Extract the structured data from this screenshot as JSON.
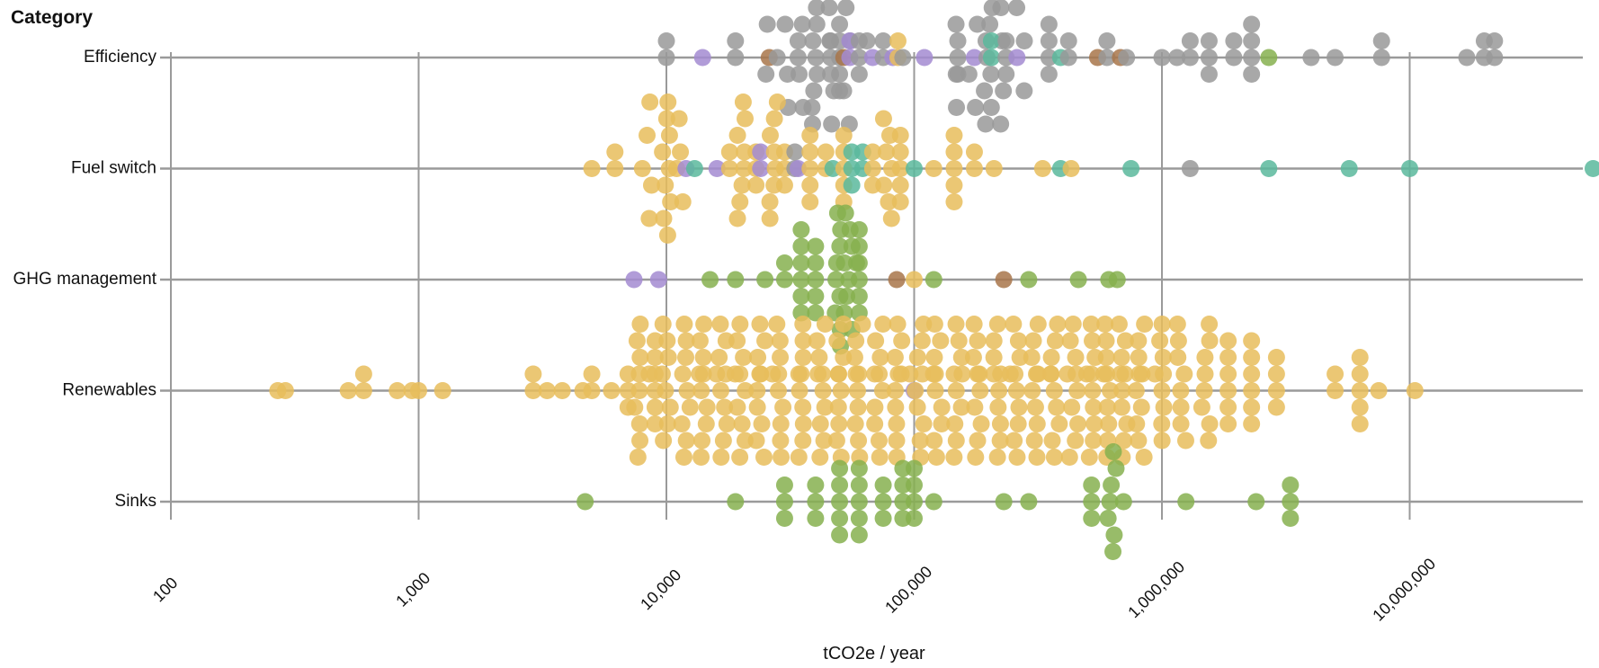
{
  "chart_data": {
    "type": "scatter",
    "title": "",
    "y_axis_title": "Category",
    "xlabel": "tCO2e / year",
    "x_scale": "log",
    "xlim": [
      100,
      60000000
    ],
    "x_ticks": [
      {
        "value": 100,
        "label": "100"
      },
      {
        "value": 1000,
        "label": "1,000"
      },
      {
        "value": 10000,
        "label": "10,000"
      },
      {
        "value": 100000,
        "label": "100,000"
      },
      {
        "value": 1000000,
        "label": "1,000,000"
      },
      {
        "value": 10000000,
        "label": "10,000,000"
      }
    ],
    "grid": true,
    "legend": "none",
    "categories": [
      "Efficiency",
      "Fuel switch",
      "GHG management",
      "Renewables",
      "Sinks"
    ],
    "colors": {
      "gray": "#999999",
      "yellow": "#e8bd5c",
      "green": "#86b04f",
      "purple": "#a38bd1",
      "teal": "#5bb89c",
      "brown": "#a8754a"
    },
    "series": [
      {
        "category": "Efficiency",
        "clusters": [
          {
            "x": 10000,
            "n": 2,
            "color": "gray"
          },
          {
            "x": 14000,
            "n": 1,
            "color": "purple"
          },
          {
            "x": 19000,
            "n": 2,
            "color": "gray"
          },
          {
            "x": 26000,
            "n": 1,
            "color": "brown"
          },
          {
            "x": 28000,
            "n": 1,
            "color": "gray"
          },
          {
            "x": 34000,
            "n": 2,
            "color": "gray"
          },
          {
            "x": 40000,
            "n": 28,
            "color": "gray"
          },
          {
            "x": 46000,
            "n": 3,
            "color": "gray"
          },
          {
            "x": 50000,
            "n": 5,
            "color": "gray"
          },
          {
            "x": 52000,
            "n": 1,
            "color": "brown"
          },
          {
            "x": 55000,
            "n": 2,
            "color": "purple"
          },
          {
            "x": 60000,
            "n": 3,
            "color": "gray"
          },
          {
            "x": 68000,
            "n": 1,
            "color": "purple"
          },
          {
            "x": 75000,
            "n": 2,
            "color": "gray"
          },
          {
            "x": 82000,
            "n": 1,
            "color": "purple"
          },
          {
            "x": 86000,
            "n": 2,
            "color": "yellow"
          },
          {
            "x": 90000,
            "n": 1,
            "color": "gray"
          },
          {
            "x": 110000,
            "n": 1,
            "color": "purple"
          },
          {
            "x": 150000,
            "n": 3,
            "color": "gray"
          },
          {
            "x": 175000,
            "n": 1,
            "color": "purple"
          },
          {
            "x": 200000,
            "n": 24,
            "color": "gray"
          },
          {
            "x": 205000,
            "n": 2,
            "color": "teal"
          },
          {
            "x": 235000,
            "n": 3,
            "color": "gray"
          },
          {
            "x": 260000,
            "n": 1,
            "color": "purple"
          },
          {
            "x": 350000,
            "n": 4,
            "color": "gray"
          },
          {
            "x": 390000,
            "n": 1,
            "color": "teal"
          },
          {
            "x": 420000,
            "n": 2,
            "color": "gray"
          },
          {
            "x": 550000,
            "n": 1,
            "color": "brown"
          },
          {
            "x": 600000,
            "n": 2,
            "color": "gray"
          },
          {
            "x": 680000,
            "n": 1,
            "color": "brown"
          },
          {
            "x": 720000,
            "n": 1,
            "color": "gray"
          },
          {
            "x": 1000000,
            "n": 1,
            "color": "gray"
          },
          {
            "x": 1150000,
            "n": 1,
            "color": "gray"
          },
          {
            "x": 1300000,
            "n": 2,
            "color": "gray"
          },
          {
            "x": 1550000,
            "n": 3,
            "color": "gray"
          },
          {
            "x": 1950000,
            "n": 2,
            "color": "gray"
          },
          {
            "x": 2300000,
            "n": 4,
            "color": "gray"
          },
          {
            "x": 2700000,
            "n": 1,
            "color": "green"
          },
          {
            "x": 4000000,
            "n": 1,
            "color": "gray"
          },
          {
            "x": 5000000,
            "n": 1,
            "color": "gray"
          },
          {
            "x": 7700000,
            "n": 2,
            "color": "gray"
          },
          {
            "x": 17000000,
            "n": 1,
            "color": "gray"
          },
          {
            "x": 20000000,
            "n": 2,
            "color": "gray"
          },
          {
            "x": 22000000,
            "n": 2,
            "color": "gray"
          }
        ]
      },
      {
        "category": "Fuel switch",
        "clusters": [
          {
            "x": 5000,
            "n": 1,
            "color": "yellow"
          },
          {
            "x": 6200,
            "n": 2,
            "color": "yellow"
          },
          {
            "x": 8000,
            "n": 1,
            "color": "yellow"
          },
          {
            "x": 10000,
            "n": 16,
            "color": "yellow"
          },
          {
            "x": 11000,
            "n": 1,
            "color": "yellow"
          },
          {
            "x": 12000,
            "n": 1,
            "color": "purple"
          },
          {
            "x": 13000,
            "n": 1,
            "color": "teal"
          },
          {
            "x": 16000,
            "n": 1,
            "color": "purple"
          },
          {
            "x": 18000,
            "n": 2,
            "color": "yellow"
          },
          {
            "x": 20000,
            "n": 8,
            "color": "yellow"
          },
          {
            "x": 23000,
            "n": 3,
            "color": "yellow"
          },
          {
            "x": 24000,
            "n": 2,
            "color": "purple"
          },
          {
            "x": 27000,
            "n": 8,
            "color": "yellow"
          },
          {
            "x": 30000,
            "n": 3,
            "color": "yellow"
          },
          {
            "x": 33000,
            "n": 2,
            "color": "gray"
          },
          {
            "x": 34000,
            "n": 1,
            "color": "purple"
          },
          {
            "x": 38000,
            "n": 5,
            "color": "yellow"
          },
          {
            "x": 44000,
            "n": 2,
            "color": "yellow"
          },
          {
            "x": 47000,
            "n": 1,
            "color": "teal"
          },
          {
            "x": 52000,
            "n": 5,
            "color": "yellow"
          },
          {
            "x": 56000,
            "n": 3,
            "color": "teal"
          },
          {
            "x": 62000,
            "n": 2,
            "color": "teal"
          },
          {
            "x": 68000,
            "n": 3,
            "color": "yellow"
          },
          {
            "x": 78000,
            "n": 7,
            "color": "yellow"
          },
          {
            "x": 88000,
            "n": 5,
            "color": "yellow"
          },
          {
            "x": 100000,
            "n": 1,
            "color": "teal"
          },
          {
            "x": 120000,
            "n": 1,
            "color": "yellow"
          },
          {
            "x": 145000,
            "n": 5,
            "color": "yellow"
          },
          {
            "x": 175000,
            "n": 2,
            "color": "yellow"
          },
          {
            "x": 210000,
            "n": 1,
            "color": "yellow"
          },
          {
            "x": 330000,
            "n": 1,
            "color": "yellow"
          },
          {
            "x": 390000,
            "n": 1,
            "color": "teal"
          },
          {
            "x": 430000,
            "n": 1,
            "color": "yellow"
          },
          {
            "x": 750000,
            "n": 1,
            "color": "teal"
          },
          {
            "x": 1300000,
            "n": 1,
            "color": "gray"
          },
          {
            "x": 2700000,
            "n": 1,
            "color": "teal"
          },
          {
            "x": 5700000,
            "n": 1,
            "color": "teal"
          },
          {
            "x": 10000000,
            "n": 1,
            "color": "teal"
          },
          {
            "x": 55000000,
            "n": 1,
            "color": "teal"
          }
        ]
      },
      {
        "category": "GHG management",
        "clusters": [
          {
            "x": 7400,
            "n": 1,
            "color": "purple"
          },
          {
            "x": 9300,
            "n": 1,
            "color": "purple"
          },
          {
            "x": 15000,
            "n": 1,
            "color": "green"
          },
          {
            "x": 19000,
            "n": 1,
            "color": "green"
          },
          {
            "x": 25000,
            "n": 1,
            "color": "green"
          },
          {
            "x": 30000,
            "n": 2,
            "color": "green"
          },
          {
            "x": 35000,
            "n": 6,
            "color": "green"
          },
          {
            "x": 40000,
            "n": 5,
            "color": "green"
          },
          {
            "x": 49000,
            "n": 10,
            "color": "green"
          },
          {
            "x": 54000,
            "n": 8,
            "color": "green"
          },
          {
            "x": 60000,
            "n": 6,
            "color": "green"
          },
          {
            "x": 85000,
            "n": 1,
            "color": "brown"
          },
          {
            "x": 100000,
            "n": 1,
            "color": "yellow"
          },
          {
            "x": 120000,
            "n": 1,
            "color": "green"
          },
          {
            "x": 230000,
            "n": 1,
            "color": "brown"
          },
          {
            "x": 290000,
            "n": 1,
            "color": "green"
          },
          {
            "x": 460000,
            "n": 1,
            "color": "green"
          },
          {
            "x": 610000,
            "n": 1,
            "color": "green"
          },
          {
            "x": 660000,
            "n": 1,
            "color": "green"
          }
        ]
      },
      {
        "category": "Renewables",
        "clusters": [
          {
            "x": 270,
            "n": 1,
            "color": "yellow"
          },
          {
            "x": 290,
            "n": 1,
            "color": "yellow"
          },
          {
            "x": 520,
            "n": 1,
            "color": "yellow"
          },
          {
            "x": 600,
            "n": 2,
            "color": "yellow"
          },
          {
            "x": 820,
            "n": 1,
            "color": "yellow"
          },
          {
            "x": 940,
            "n": 1,
            "color": "yellow"
          },
          {
            "x": 1000,
            "n": 1,
            "color": "yellow"
          },
          {
            "x": 1250,
            "n": 1,
            "color": "yellow"
          },
          {
            "x": 2900,
            "n": 2,
            "color": "yellow"
          },
          {
            "x": 3300,
            "n": 1,
            "color": "yellow"
          },
          {
            "x": 3800,
            "n": 1,
            "color": "yellow"
          },
          {
            "x": 4600,
            "n": 1,
            "color": "yellow"
          },
          {
            "x": 5000,
            "n": 2,
            "color": "yellow"
          },
          {
            "x": 6000,
            "n": 1,
            "color": "yellow"
          },
          {
            "x": 7000,
            "n": 3,
            "color": "yellow"
          },
          {
            "x": 7600,
            "n": 10,
            "color": "yellow"
          },
          {
            "x": 9000,
            "n": 6,
            "color": "yellow"
          },
          {
            "x": 10000,
            "n": 8,
            "color": "yellow"
          },
          {
            "x": 12000,
            "n": 10,
            "color": "yellow"
          },
          {
            "x": 14000,
            "n": 10,
            "color": "yellow"
          },
          {
            "x": 17000,
            "n": 10,
            "color": "yellow"
          },
          {
            "x": 20000,
            "n": 10,
            "color": "yellow"
          },
          {
            "x": 24000,
            "n": 10,
            "color": "yellow"
          },
          {
            "x": 29000,
            "n": 10,
            "color": "yellow"
          },
          {
            "x": 35000,
            "n": 10,
            "color": "yellow"
          },
          {
            "x": 42000,
            "n": 10,
            "color": "yellow"
          },
          {
            "x": 50000,
            "n": 10,
            "color": "yellow"
          },
          {
            "x": 60000,
            "n": 10,
            "color": "yellow"
          },
          {
            "x": 72000,
            "n": 10,
            "color": "yellow"
          },
          {
            "x": 86000,
            "n": 10,
            "color": "yellow"
          },
          {
            "x": 100000,
            "n": 1,
            "color": "purple"
          },
          {
            "x": 105000,
            "n": 10,
            "color": "yellow"
          },
          {
            "x": 125000,
            "n": 10,
            "color": "yellow"
          },
          {
            "x": 150000,
            "n": 10,
            "color": "yellow"
          },
          {
            "x": 180000,
            "n": 10,
            "color": "yellow"
          },
          {
            "x": 215000,
            "n": 10,
            "color": "yellow"
          },
          {
            "x": 260000,
            "n": 10,
            "color": "yellow"
          },
          {
            "x": 310000,
            "n": 10,
            "color": "yellow"
          },
          {
            "x": 370000,
            "n": 10,
            "color": "yellow"
          },
          {
            "x": 440000,
            "n": 10,
            "color": "yellow"
          },
          {
            "x": 520000,
            "n": 10,
            "color": "yellow"
          },
          {
            "x": 600000,
            "n": 10,
            "color": "yellow"
          },
          {
            "x": 700000,
            "n": 10,
            "color": "yellow"
          },
          {
            "x": 820000,
            "n": 10,
            "color": "yellow"
          },
          {
            "x": 980000,
            "n": 8,
            "color": "yellow"
          },
          {
            "x": 1200000,
            "n": 8,
            "color": "yellow"
          },
          {
            "x": 1500000,
            "n": 8,
            "color": "yellow"
          },
          {
            "x": 1850000,
            "n": 6,
            "color": "yellow"
          },
          {
            "x": 2300000,
            "n": 6,
            "color": "yellow"
          },
          {
            "x": 2900000,
            "n": 4,
            "color": "yellow"
          },
          {
            "x": 5000000,
            "n": 2,
            "color": "yellow"
          },
          {
            "x": 6300000,
            "n": 5,
            "color": "yellow"
          },
          {
            "x": 7500000,
            "n": 1,
            "color": "yellow"
          },
          {
            "x": 10500000,
            "n": 1,
            "color": "yellow"
          }
        ]
      },
      {
        "category": "Sinks",
        "clusters": [
          {
            "x": 4700,
            "n": 1,
            "color": "green"
          },
          {
            "x": 19000,
            "n": 1,
            "color": "green"
          },
          {
            "x": 30000,
            "n": 3,
            "color": "green"
          },
          {
            "x": 40000,
            "n": 3,
            "color": "green"
          },
          {
            "x": 50000,
            "n": 5,
            "color": "green"
          },
          {
            "x": 60000,
            "n": 5,
            "color": "green"
          },
          {
            "x": 75000,
            "n": 3,
            "color": "green"
          },
          {
            "x": 90000,
            "n": 4,
            "color": "green"
          },
          {
            "x": 100000,
            "n": 4,
            "color": "green"
          },
          {
            "x": 120000,
            "n": 1,
            "color": "green"
          },
          {
            "x": 230000,
            "n": 1,
            "color": "green"
          },
          {
            "x": 290000,
            "n": 1,
            "color": "green"
          },
          {
            "x": 520000,
            "n": 3,
            "color": "green"
          },
          {
            "x": 630000,
            "n": 7,
            "color": "green"
          },
          {
            "x": 700000,
            "n": 1,
            "color": "green"
          },
          {
            "x": 1250000,
            "n": 1,
            "color": "green"
          },
          {
            "x": 2400000,
            "n": 1,
            "color": "green"
          },
          {
            "x": 3300000,
            "n": 3,
            "color": "green"
          }
        ]
      }
    ]
  }
}
